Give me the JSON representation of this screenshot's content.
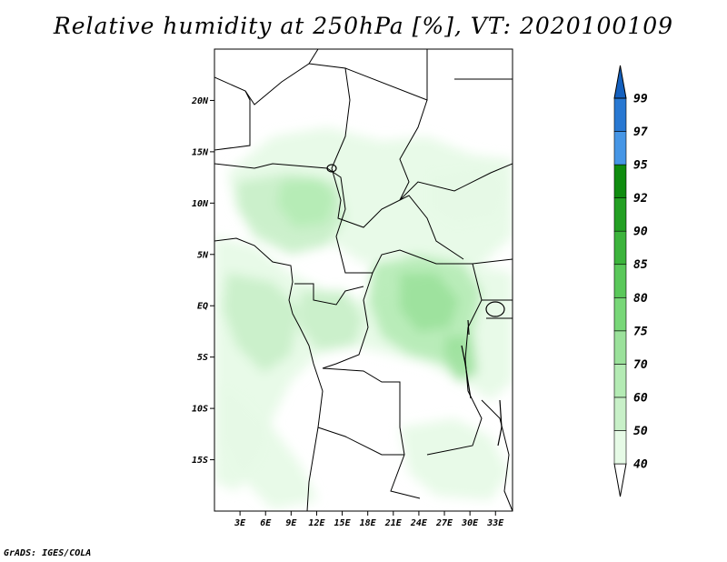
{
  "title": "Relative humidity at 250hPa [%], VT: 2020100109",
  "credit": "GrADS: IGES/COLA",
  "map": {
    "lat_labels": [
      "20N",
      "15N",
      "10N",
      "5N",
      "EQ",
      "5S",
      "10S",
      "15S"
    ],
    "lon_labels": [
      "3E",
      "6E",
      "9E",
      "12E",
      "15E",
      "18E",
      "21E",
      "24E",
      "27E",
      "30E",
      "33E"
    ],
    "lat_values": [
      20,
      15,
      10,
      5,
      0,
      -5,
      -10,
      -15
    ],
    "lon_values": [
      3,
      6,
      9,
      12,
      15,
      18,
      21,
      24,
      27,
      30,
      33
    ],
    "lon_range": [
      0,
      35
    ],
    "lat_range": [
      -20,
      25
    ]
  },
  "colorbar": {
    "levels": [
      "40",
      "50",
      "60",
      "70",
      "75",
      "80",
      "85",
      "90",
      "92",
      "95",
      "97",
      "99"
    ],
    "colors": [
      "#e6fae6",
      "#c8f0c8",
      "#b4ebb4",
      "#9be19b",
      "#78d778",
      "#5ac85a",
      "#3cb43c",
      "#23a023",
      "#0f8c0f",
      "#4696e6",
      "#2878d2",
      "#1460be"
    ],
    "under_color": "#ffffff",
    "over_color": "#1460be"
  }
}
